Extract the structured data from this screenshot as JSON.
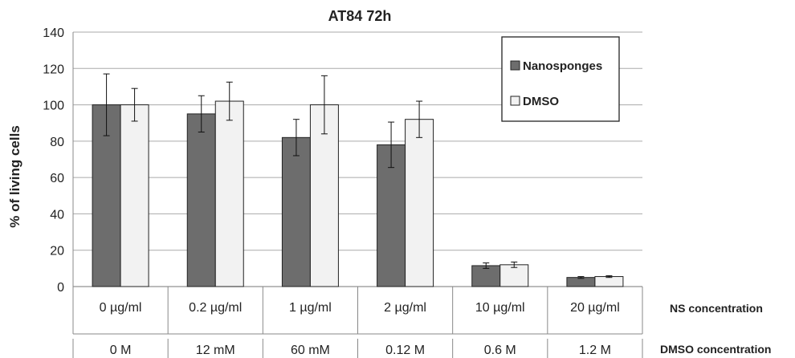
{
  "chart_data": {
    "type": "bar",
    "title": "AT84 72h",
    "ylabel": "% of living cells",
    "xlabel": "",
    "ylim": [
      0,
      140
    ],
    "yticks": [
      0,
      20,
      40,
      60,
      80,
      100,
      120,
      140
    ],
    "grid": true,
    "legend_position": "top-right",
    "categories": [
      "0 µg/ml",
      "0.2 µg/ml",
      "1 µg/ml",
      "2 µg/ml",
      "10 µg/ml",
      "20 µg/ml"
    ],
    "secondary_categories": [
      "0 M",
      "12 mM",
      "60 mM",
      "0.12 M",
      "0.6 M",
      "1.2 M"
    ],
    "row_labels": [
      "NS concentration",
      "DMSO concentration"
    ],
    "series": [
      {
        "name": "Nanosponges",
        "color": "#6d6d6d",
        "values": [
          100,
          95,
          82,
          78,
          11.5,
          5
        ],
        "errors": [
          17,
          10,
          10,
          12.5,
          1.5,
          0.5
        ]
      },
      {
        "name": "DMSO",
        "color": "#f2f2f2",
        "values": [
          100,
          102,
          100,
          92,
          12,
          5.5
        ],
        "errors": [
          9,
          10.5,
          16,
          10,
          1.5,
          0.5
        ]
      }
    ]
  }
}
